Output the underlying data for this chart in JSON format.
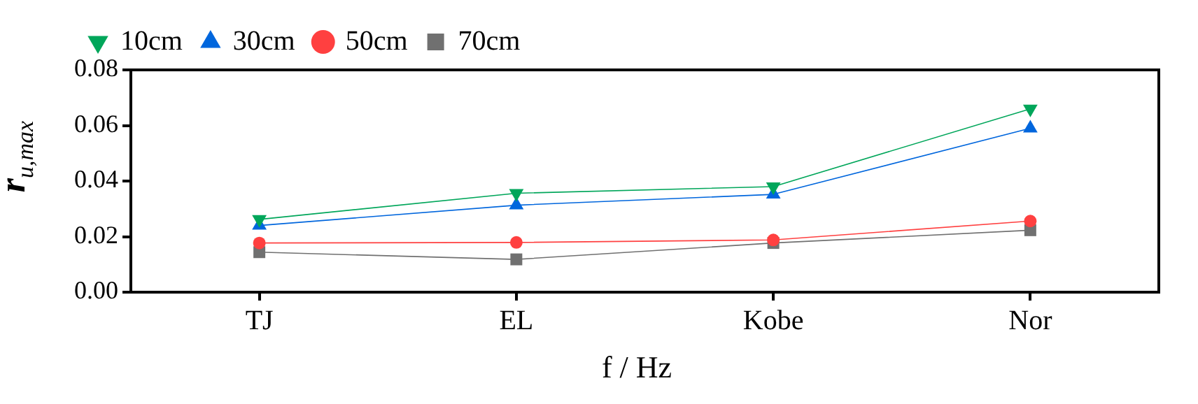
{
  "chart_data": {
    "type": "line",
    "xlabel": "f / Hz",
    "ylabel": "r$_{u,max}$",
    "categories": [
      "TJ",
      "EL",
      "Kobe",
      "Nor"
    ],
    "series": [
      {
        "name": "10cm",
        "color": "#00a65a",
        "marker": "triangle-down",
        "values": [
          0.0262,
          0.0356,
          0.038,
          0.066
        ]
      },
      {
        "name": "30cm",
        "color": "#0066dd",
        "marker": "triangle",
        "values": [
          0.024,
          0.0313,
          0.0352,
          0.059
        ]
      },
      {
        "name": "50cm",
        "color": "#ff4040",
        "marker": "circle",
        "values": [
          0.0177,
          0.0179,
          0.0188,
          0.0256
        ]
      },
      {
        "name": "70cm",
        "color": "#707070",
        "marker": "square",
        "values": [
          0.0144,
          0.0118,
          0.0177,
          0.0223
        ]
      }
    ],
    "ylim": [
      0,
      0.08
    ],
    "yticks": [
      {
        "value": 0,
        "label": "0.00"
      },
      {
        "value": 0.02,
        "label": "0.02"
      },
      {
        "value": 0.04,
        "label": "0.04"
      },
      {
        "value": 0.06,
        "label": "0.06"
      },
      {
        "value": 0.08,
        "label": "0.08"
      }
    ],
    "grid": false,
    "legend": "top left",
    "line_style": "solid"
  }
}
